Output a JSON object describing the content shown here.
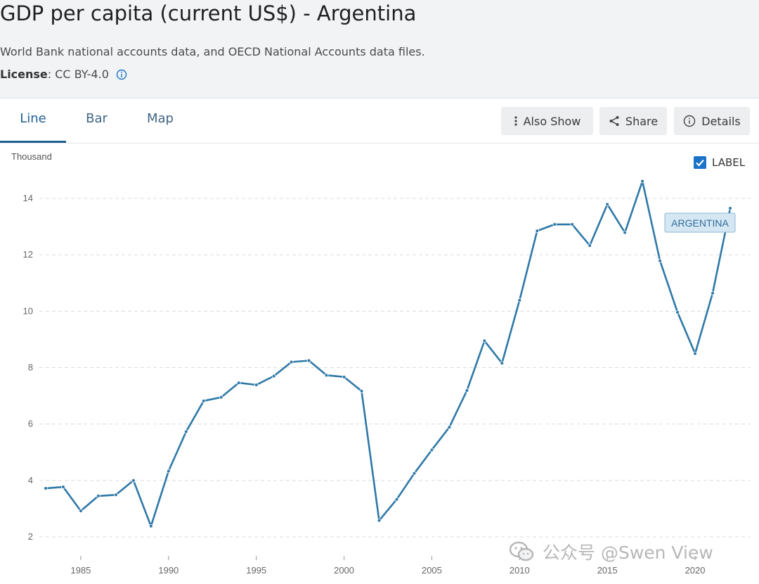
{
  "header": {
    "title": "GDP per capita (current US$) - Argentina",
    "source": "World Bank national accounts data, and OECD National Accounts data files.",
    "license_label": "License",
    "license_value": " : CC BY-4.0"
  },
  "tabs": [
    {
      "label": "Line",
      "active": true
    },
    {
      "label": "Bar",
      "active": false
    },
    {
      "label": "Map",
      "active": false
    }
  ],
  "toolbar": {
    "also_show": "Also Show",
    "share": "Share",
    "details": "Details"
  },
  "label_toggle": {
    "label": "LABEL",
    "checked": true
  },
  "watermark": "公众号 @Swen View",
  "colors": {
    "accent": "#1f5f92",
    "line": "#2e78a8",
    "checkbox": "#1a73c8"
  },
  "chart_data": {
    "type": "line",
    "title": "",
    "ylabel": "Thousand",
    "xlabel": "",
    "ylim": [
      1.5,
      15.2
    ],
    "xlim": [
      1983,
      2022
    ],
    "yticks": [
      2,
      4,
      6,
      8,
      10,
      12,
      14
    ],
    "xticks": [
      1985,
      1990,
      1995,
      2000,
      2005,
      2010,
      2015,
      2020
    ],
    "grid": true,
    "series": [
      {
        "name": "ARGENTINA",
        "x": [
          1983,
          1984,
          1985,
          1986,
          1987,
          1988,
          1989,
          1990,
          1991,
          1992,
          1993,
          1994,
          1995,
          1996,
          1997,
          1998,
          1999,
          2000,
          2001,
          2002,
          2003,
          2004,
          2005,
          2006,
          2007,
          2008,
          2009,
          2010,
          2011,
          2012,
          2013,
          2014,
          2015,
          2016,
          2017,
          2018,
          2019,
          2020,
          2021,
          2022
        ],
        "y": [
          3.72,
          3.77,
          2.92,
          3.45,
          3.49,
          4.0,
          2.38,
          4.33,
          5.73,
          6.82,
          6.95,
          7.46,
          7.39,
          7.7,
          8.2,
          8.25,
          7.73,
          7.67,
          7.17,
          2.58,
          3.33,
          4.25,
          5.08,
          5.89,
          7.19,
          8.95,
          8.16,
          10.39,
          12.85,
          13.08,
          13.08,
          12.33,
          13.79,
          12.79,
          14.61,
          11.79,
          9.96,
          8.5,
          10.64,
          13.65
        ]
      }
    ]
  }
}
